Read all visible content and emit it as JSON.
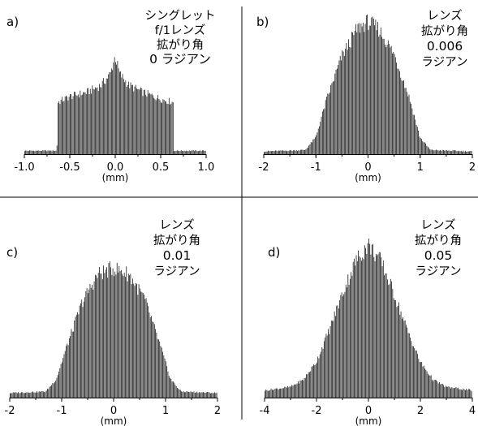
{
  "chart_data": [
    {
      "type": "bar",
      "panel": "a)",
      "annotation": [
        "シングレット",
        "f/1レンズ",
        "拡がり角",
        "0 ラジアン"
      ],
      "xlabel": "(mm)",
      "ylabel": "",
      "xlim": [
        -1.0,
        1.0
      ],
      "ticks": [
        "-1.0",
        "-0.5",
        "0.0",
        "0.5",
        "1.0"
      ],
      "tick_values": [
        -1.0,
        -0.5,
        0.0,
        0.5,
        1.0
      ],
      "profile": {
        "x": [
          -1.0,
          -0.64,
          -0.63,
          -0.5,
          -0.3,
          -0.15,
          -0.05,
          0.0,
          0.05,
          0.15,
          0.3,
          0.5,
          0.64,
          0.65,
          1.0
        ],
        "y": [
          0.03,
          0.03,
          0.45,
          0.5,
          0.54,
          0.6,
          0.7,
          0.85,
          0.7,
          0.6,
          0.54,
          0.48,
          0.45,
          0.03,
          0.03
        ]
      }
    },
    {
      "type": "bar",
      "panel": "b)",
      "annotation": [
        "レンズ",
        "拡がり角",
        "0.006",
        "ラジアン"
      ],
      "xlabel": "(mm)",
      "ylabel": "",
      "xlim": [
        -2,
        2
      ],
      "ticks": [
        "-2",
        "-1",
        "0",
        "1",
        "2"
      ],
      "tick_values": [
        -2,
        -1,
        0,
        1,
        2
      ],
      "profile": {
        "x": [
          -2.0,
          -1.2,
          -1.0,
          -0.8,
          -0.5,
          -0.2,
          0.0,
          0.2,
          0.5,
          0.8,
          1.0,
          1.2,
          2.0
        ],
        "y": [
          0.02,
          0.03,
          0.12,
          0.38,
          0.7,
          0.9,
          0.95,
          0.9,
          0.72,
          0.4,
          0.12,
          0.03,
          0.02
        ]
      }
    },
    {
      "type": "bar",
      "panel": "c)",
      "annotation": [
        "レンズ",
        "拡がり角",
        "0.01",
        "ラジアン"
      ],
      "xlabel": "(mm)",
      "ylabel": "",
      "xlim": [
        -2,
        2
      ],
      "ticks": [
        "-2",
        "-1",
        "0",
        "1",
        "2"
      ],
      "tick_values": [
        -2,
        -1,
        0,
        1,
        2
      ],
      "profile": {
        "x": [
          -2.0,
          -1.3,
          -1.1,
          -0.9,
          -0.6,
          -0.3,
          0.0,
          0.3,
          0.6,
          0.9,
          1.1,
          1.3,
          2.0
        ],
        "y": [
          0.03,
          0.04,
          0.12,
          0.33,
          0.62,
          0.8,
          0.84,
          0.8,
          0.64,
          0.34,
          0.12,
          0.04,
          0.03
        ]
      }
    },
    {
      "type": "bar",
      "panel": "d)",
      "annotation": [
        "レンズ",
        "拡がり角",
        "0.05",
        "ラジアン"
      ],
      "xlabel": "(mm)",
      "ylabel": "",
      "xlim": [
        -4,
        4
      ],
      "ticks": [
        "-4",
        "-2",
        "0",
        "2",
        "4"
      ],
      "tick_values": [
        -4,
        -2,
        0,
        2,
        4
      ],
      "profile": {
        "x": [
          -4.0,
          -3.0,
          -2.5,
          -2.0,
          -1.5,
          -1.0,
          -0.5,
          0.0,
          0.5,
          1.0,
          1.5,
          2.0,
          2.5,
          3.0,
          4.0
        ],
        "y": [
          0.04,
          0.06,
          0.1,
          0.2,
          0.38,
          0.58,
          0.76,
          0.86,
          0.76,
          0.58,
          0.38,
          0.2,
          0.1,
          0.06,
          0.04
        ]
      }
    }
  ]
}
